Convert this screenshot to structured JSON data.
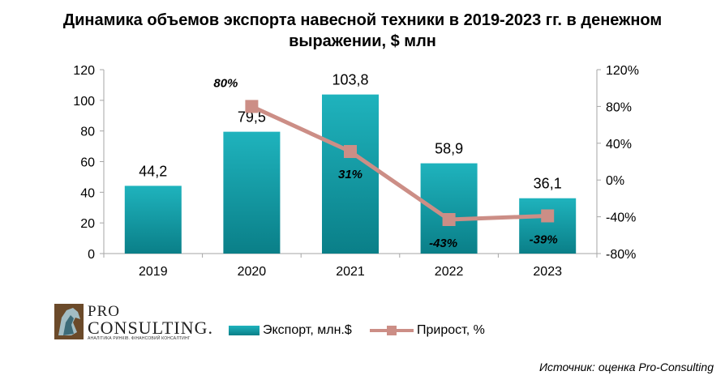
{
  "title_line1": "Динамика объемов экспорта навесной техники в 2019-2023 гг. в денежном",
  "title_line2": "выражении, $ млн",
  "logo": {
    "line1": "PRO",
    "line2": "CONSULTING.",
    "tagline": "АНАЛІТИКА РИНКІВ. ФІНАНСОВИЙ КОНСАЛТИНГ"
  },
  "legend": {
    "bar_label": "Экспорт, млн.$",
    "line_label": "Прирост, %"
  },
  "source": "Источник: оценка Pro-Consulting",
  "colors": {
    "bar_top": "#1fb3bd",
    "bar_bottom": "#0a7f88",
    "line": "#cc8e86",
    "axis": "#a6a6a6"
  },
  "chart_data": {
    "type": "bar+line",
    "categories": [
      "2019",
      "2020",
      "2021",
      "2022",
      "2023"
    ],
    "series": [
      {
        "name": "Экспорт, млн.$",
        "type": "bar",
        "axis": "left",
        "values": [
          44.2,
          79.5,
          103.8,
          58.9,
          36.1
        ],
        "labels": [
          "44,2",
          "79,5",
          "103,8",
          "58,9",
          "36,1"
        ]
      },
      {
        "name": "Прирост, %",
        "type": "line",
        "axis": "right",
        "x": [
          "2020",
          "2021",
          "2022",
          "2023"
        ],
        "values": [
          80,
          31,
          -43,
          -39
        ],
        "labels": [
          "80%",
          "31%",
          "-43%",
          "-39%"
        ]
      }
    ],
    "y_left": {
      "range": [
        0,
        120
      ],
      "ticks": [
        0,
        20,
        40,
        60,
        80,
        100,
        120
      ],
      "tick_labels": [
        "0",
        "20",
        "40",
        "60",
        "80",
        "100",
        "120"
      ]
    },
    "y_right": {
      "range": [
        -80,
        120
      ],
      "ticks": [
        -80,
        -40,
        0,
        40,
        80,
        120
      ],
      "tick_labels": [
        "-80%",
        "-40%",
        "0%",
        "40%",
        "80%",
        "120%"
      ]
    },
    "grid": false,
    "legend_position": "bottom"
  }
}
